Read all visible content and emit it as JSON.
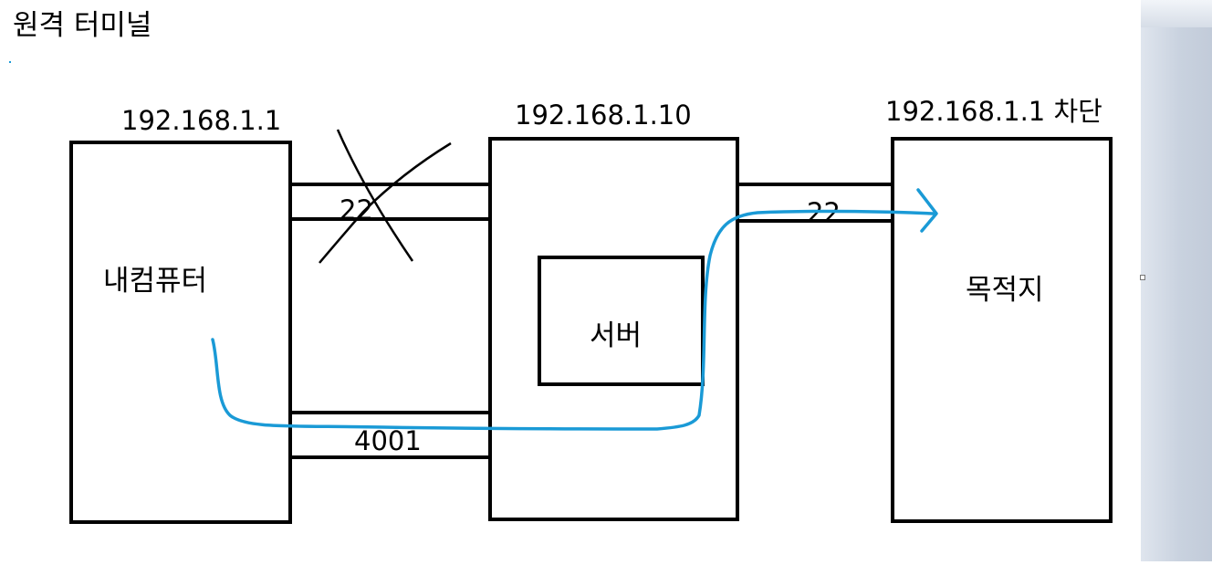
{
  "title": "원격 터미널",
  "colors": {
    "line": "#000000",
    "route": "#1a9ad6",
    "background": "#ffffff"
  },
  "nodes": {
    "my_computer": {
      "label": "내컴퓨터",
      "ip": "192.168.1.1"
    },
    "server_box": {
      "ip": "192.168.1.10"
    },
    "server": {
      "label": "서버"
    },
    "destination": {
      "label": "목적지",
      "ip": "192.168.1.1 차단"
    }
  },
  "links": {
    "blocked_port": {
      "label": "22",
      "blocked": true
    },
    "tunnel_port": {
      "label": "4001"
    },
    "forward_port": {
      "label": "22"
    }
  }
}
